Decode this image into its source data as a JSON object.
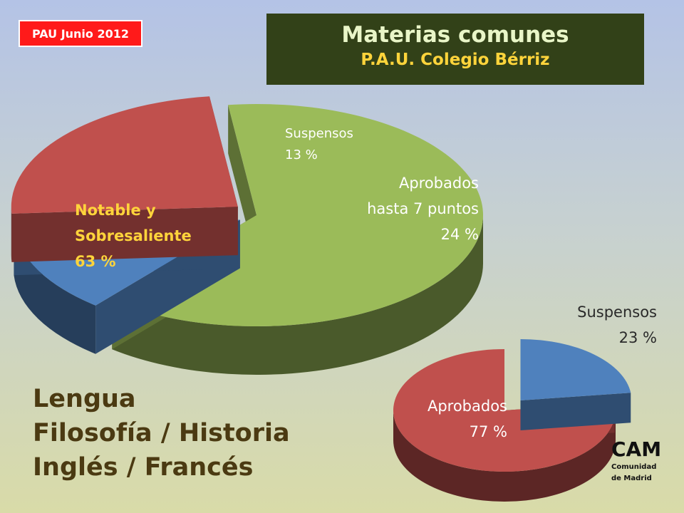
{
  "badge": "PAU Junio 2012",
  "header": {
    "title": "Materias comunes",
    "subtitle": "P.A.U.  Colegio Bérriz"
  },
  "subjects": [
    "Lengua",
    "Filosofía  /  Historia",
    "Inglés  /  Francés"
  ],
  "cam": {
    "title": "CAM",
    "subtitle_line1": "Comunidad",
    "subtitle_line2": "de Madrid"
  },
  "colors": {
    "green": "#9bbb59",
    "green_dark": "#5c7a25",
    "red": "#c0504d",
    "red_dark": "#5e1f1e",
    "blue": "#4f81bd",
    "blue_dark": "#22365a",
    "badge": "#ff1a1a",
    "title_bg": "#324118"
  },
  "chart_data": [
    {
      "type": "pie",
      "title": "Colegio Bérriz",
      "slices": [
        {
          "label": "Notable y Sobresaliente",
          "value": 63,
          "unit": "%",
          "color": "#9bbb59",
          "label_lines": [
            "Notable y",
            "Sobresaliente",
            "63 %"
          ]
        },
        {
          "label": "Suspensos",
          "value": 13,
          "unit": "%",
          "color": "#4f81bd",
          "label_lines": [
            "Suspensos",
            "13 %"
          ]
        },
        {
          "label": "Aprobados hasta 7 puntos",
          "value": 24,
          "unit": "%",
          "color": "#c0504d",
          "label_lines": [
            "Aprobados",
            "hasta 7 puntos",
            "24 %"
          ]
        }
      ]
    },
    {
      "type": "pie",
      "title": "CAM",
      "slices": [
        {
          "label": "Suspensos",
          "value": 23,
          "unit": "%",
          "color": "#4f81bd",
          "label_lines": [
            "Suspensos",
            "23 %"
          ]
        },
        {
          "label": "Aprobados",
          "value": 77,
          "unit": "%",
          "color": "#c0504d",
          "label_lines": [
            "Aprobados",
            "77 %"
          ]
        }
      ]
    }
  ]
}
